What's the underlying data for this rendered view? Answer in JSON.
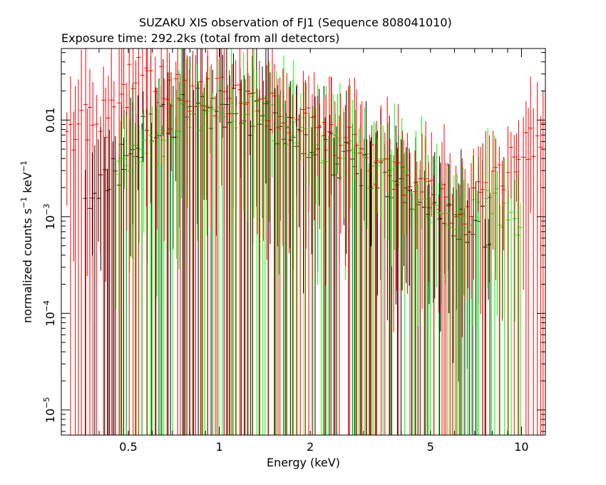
{
  "chart_data": {
    "type": "scatter",
    "title": "SUZAKU XIS observation of FJ1 (Sequence 808041010)",
    "subtitle": "Exposure time: 292.2ks (total from all detectors)",
    "xlabel": "Energy (keV)",
    "ylabel": {
      "text": "normalized counts s",
      "sup1": "−1",
      "mid": " keV",
      "sup2": "−1"
    },
    "x_scale": "log",
    "y_scale": "log",
    "xlim": [
      0.3,
      12
    ],
    "ylim": [
      5.5e-06,
      0.055
    ],
    "x_ticks": [
      {
        "value": 0.5,
        "label": "0.5"
      },
      {
        "value": 1,
        "label": "1"
      },
      {
        "value": 2,
        "label": "2"
      },
      {
        "value": 5,
        "label": "5"
      },
      {
        "value": 10,
        "label": "10"
      }
    ],
    "y_ticks": [
      {
        "value": 1e-05,
        "base": "10",
        "exp": "−5"
      },
      {
        "value": 0.0001,
        "base": "10",
        "exp": "−4"
      },
      {
        "value": 0.001,
        "base": "10",
        "exp": "−3"
      },
      {
        "value": 0.01,
        "base": "0.01",
        "exp": ""
      }
    ],
    "grid": false,
    "legend": "none",
    "series": [
      {
        "color": "#000000",
        "points": [
          {
            "x": 0.36,
            "y": 0.001
          },
          {
            "x": 0.47,
            "y": 0.0035
          },
          {
            "x": 0.55,
            "y": 0.0062
          },
          {
            "x": 0.62,
            "y": 0.0088
          },
          {
            "x": 0.7,
            "y": 0.0105
          },
          {
            "x": 0.8,
            "y": 0.0122
          },
          {
            "x": 0.9,
            "y": 0.0135
          },
          {
            "x": 1.0,
            "y": 0.0132
          },
          {
            "x": 1.2,
            "y": 0.0125
          },
          {
            "x": 1.4,
            "y": 0.0102
          },
          {
            "x": 1.6,
            "y": 0.0082
          },
          {
            "x": 1.8,
            "y": 0.0072
          },
          {
            "x": 2.0,
            "y": 0.0061
          },
          {
            "x": 2.3,
            "y": 0.0048
          },
          {
            "x": 2.6,
            "y": 0.0037
          },
          {
            "x": 3.0,
            "y": 0.003
          },
          {
            "x": 3.5,
            "y": 0.0024
          },
          {
            "x": 4.0,
            "y": 0.0019
          },
          {
            "x": 4.5,
            "y": 0.0015
          },
          {
            "x": 5.0,
            "y": 0.0013
          },
          {
            "x": 6.0,
            "y": 0.001
          },
          {
            "x": 7.0,
            "y": 0.0008
          },
          {
            "x": 8.0,
            "y": 0.00075
          }
        ]
      },
      {
        "color": "#ff0000",
        "points": [
          {
            "x": 0.31,
            "y": 0.006
          },
          {
            "x": 0.36,
            "y": 0.009
          },
          {
            "x": 0.42,
            "y": 0.0105
          },
          {
            "x": 0.47,
            "y": 0.014
          },
          {
            "x": 0.5,
            "y": 0.025
          },
          {
            "x": 0.55,
            "y": 0.028
          },
          {
            "x": 0.6,
            "y": 0.024
          },
          {
            "x": 0.7,
            "y": 0.022
          },
          {
            "x": 0.8,
            "y": 0.02
          },
          {
            "x": 0.9,
            "y": 0.019
          },
          {
            "x": 1.0,
            "y": 0.0175
          },
          {
            "x": 1.2,
            "y": 0.015
          },
          {
            "x": 1.4,
            "y": 0.0125
          },
          {
            "x": 1.6,
            "y": 0.0105
          },
          {
            "x": 1.8,
            "y": 0.0092
          },
          {
            "x": 2.0,
            "y": 0.008
          },
          {
            "x": 2.3,
            "y": 0.0067
          },
          {
            "x": 2.6,
            "y": 0.0055
          },
          {
            "x": 3.0,
            "y": 0.0042
          },
          {
            "x": 3.5,
            "y": 0.0032
          },
          {
            "x": 4.0,
            "y": 0.0025
          },
          {
            "x": 4.5,
            "y": 0.002
          },
          {
            "x": 5.0,
            "y": 0.0017
          },
          {
            "x": 6.0,
            "y": 0.0013
          },
          {
            "x": 7.0,
            "y": 0.0014
          },
          {
            "x": 8.0,
            "y": 0.0022
          },
          {
            "x": 9.0,
            "y": 0.0035
          },
          {
            "x": 10.0,
            "y": 0.0048
          },
          {
            "x": 11.0,
            "y": 0.0058
          },
          {
            "x": 12.0,
            "y": 0.0065
          }
        ]
      },
      {
        "color": "#00ff00",
        "points": [
          {
            "x": 0.45,
            "y": 0.002
          },
          {
            "x": 0.5,
            "y": 0.0032
          },
          {
            "x": 0.6,
            "y": 0.0052
          },
          {
            "x": 0.7,
            "y": 0.008
          },
          {
            "x": 0.8,
            "y": 0.0105
          },
          {
            "x": 0.9,
            "y": 0.0135
          },
          {
            "x": 1.0,
            "y": 0.0148
          },
          {
            "x": 1.2,
            "y": 0.013
          },
          {
            "x": 1.4,
            "y": 0.0112
          },
          {
            "x": 1.6,
            "y": 0.0092
          },
          {
            "x": 1.8,
            "y": 0.0078
          },
          {
            "x": 2.0,
            "y": 0.0067
          },
          {
            "x": 2.3,
            "y": 0.0052
          },
          {
            "x": 2.6,
            "y": 0.0042
          },
          {
            "x": 3.0,
            "y": 0.0034
          },
          {
            "x": 3.5,
            "y": 0.0027
          },
          {
            "x": 4.0,
            "y": 0.0021
          },
          {
            "x": 4.5,
            "y": 0.0017
          },
          {
            "x": 5.0,
            "y": 0.0014
          },
          {
            "x": 6.0,
            "y": 0.0011
          },
          {
            "x": 7.0,
            "y": 0.001
          },
          {
            "x": 8.0,
            "y": 0.0015
          },
          {
            "x": 9.0,
            "y": 0.0012
          },
          {
            "x": 10.0,
            "y": 0.00085
          }
        ]
      }
    ]
  }
}
